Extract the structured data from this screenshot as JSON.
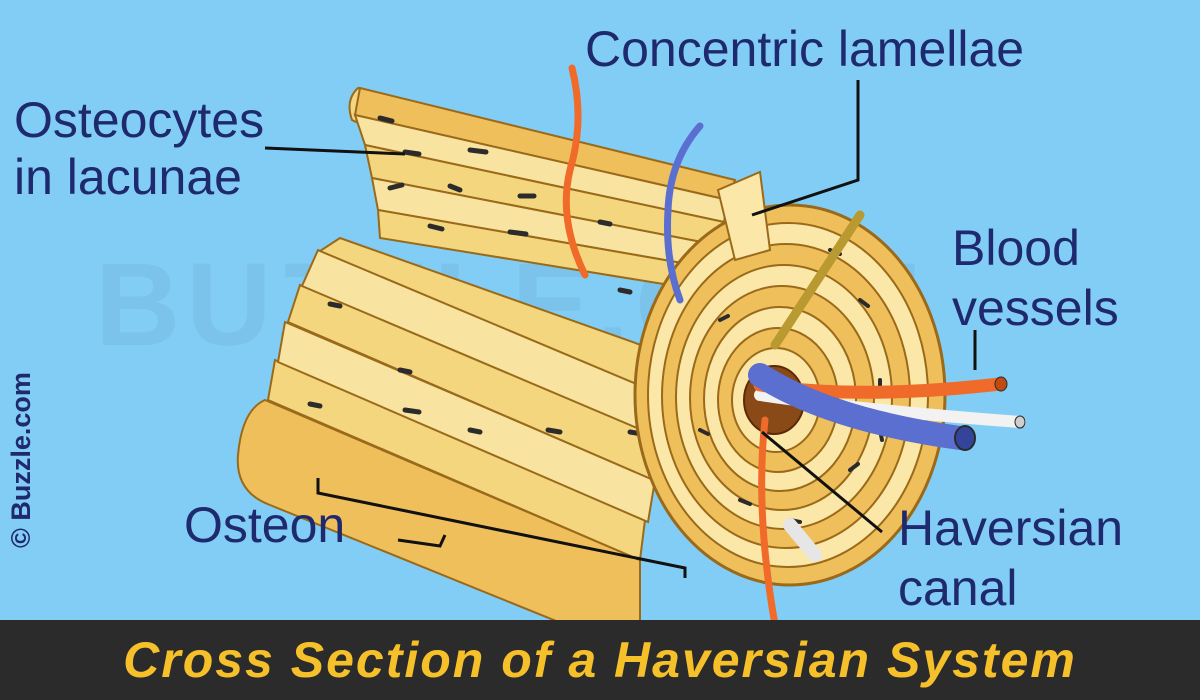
{
  "title": "Cross Section of a Haversian System",
  "copyright": "© Buzzle.com",
  "watermark": "BUZZLE.COM",
  "labels": {
    "osteocytes_line1": "Osteocytes",
    "osteocytes_line2": "in lacunae",
    "concentric_lamellae": "Concentric lamellae",
    "blood_line1": "Blood",
    "blood_line2": "vessels",
    "osteon": "Osteon",
    "haversian_line1": "Haversian",
    "haversian_line2": "canal"
  },
  "colors": {
    "background": "#82cdf5",
    "label_text": "#1f2a6e",
    "title_bar": "#2b2b2b",
    "title_text": "#f6c02b",
    "bone_light": "#fbe7a8",
    "bone_dark": "#efbf5c",
    "artery": "#f06a2a",
    "vein": "#5b6fd0",
    "nerve": "#f2f2f2"
  },
  "icons": [
    "bone-cylinder",
    "blood-vessel",
    "nerve",
    "lacuna"
  ]
}
